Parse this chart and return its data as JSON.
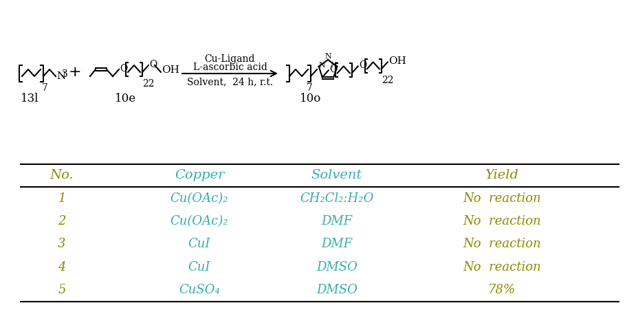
{
  "reaction_above1": "Cu-Ligand",
  "reaction_above2": "L-ascorbic acid",
  "reaction_below": "Solvent,  24 h, r.t.",
  "reactant1_label": "13l",
  "reactant2_label": "10e",
  "product_label": "10o",
  "sub_22": "22",
  "sub_7": "7",
  "table_headers": [
    "No.",
    "Copper",
    "Solvent",
    "Yield"
  ],
  "table_rows": [
    [
      "1",
      "Cu(OAc)₂",
      "CH₂Cl₂:H₂O",
      "No  reaction"
    ],
    [
      "2",
      "Cu(OAc)₂",
      "DMF",
      "No  reaction"
    ],
    [
      "3",
      "CuI",
      "DMF",
      "No  reaction"
    ],
    [
      "4",
      "CuI",
      "DMSO",
      "No  reaction"
    ],
    [
      "5",
      "CuSO₄",
      "DMSO",
      "78%"
    ]
  ],
  "col_no_color": "#8B8B00",
  "col_copper_color": "#3AACAC",
  "col_solvent_color": "#3AACAC",
  "col_yield_no_color": "#8B8B00",
  "col_yield_78_color": "#8B8B00",
  "header_no_color": "#8B8B00",
  "header_copper_color": "#3AACAC",
  "header_solvent_color": "#3AACAC",
  "header_yield_color": "#8B8B00",
  "line_color": "#000000",
  "bg_color": "#ffffff",
  "font_size_table": 13,
  "font_size_header": 14,
  "font_size_struct": 11,
  "font_size_label": 12,
  "font_size_sub": 9
}
